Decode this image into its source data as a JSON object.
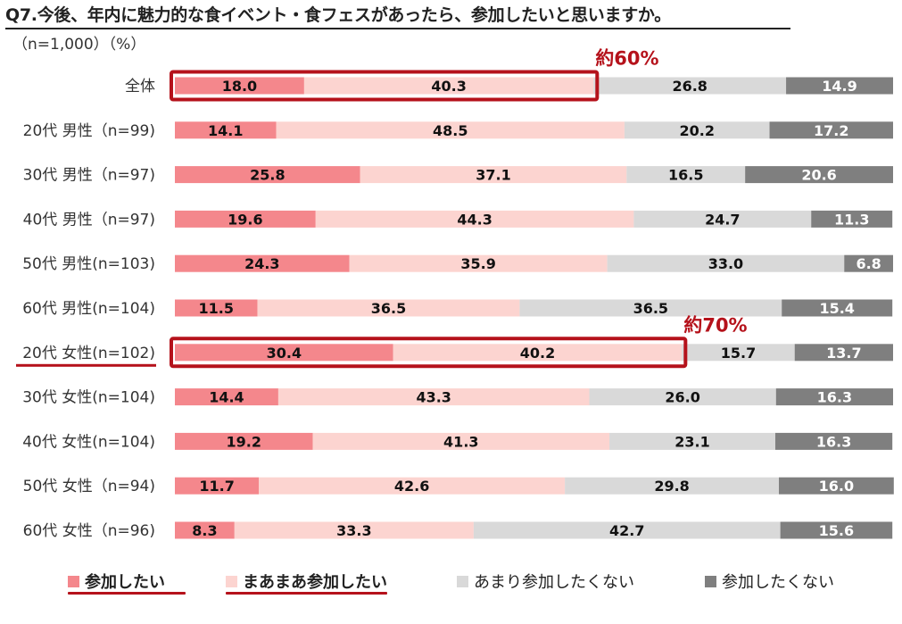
{
  "title": "Q7.今後、年内に魅力的な食イベント・食フェスがあったら、参加したいと思いますか。",
  "subtitle": "（n=1,000）（%）",
  "colors": {
    "want": "#f4878c",
    "somewhat": "#fcd4d0",
    "not_much": "#d9d9d9",
    "not": "#7f7f7f",
    "highlight": "#b5121b"
  },
  "legend": [
    {
      "label": "参加したい",
      "color": "#f4878c",
      "bold": true,
      "underline": true
    },
    {
      "label": "まあまあ参加したい",
      "color": "#fcd4d0",
      "bold": true,
      "underline": true
    },
    {
      "label": "あまり参加したくない",
      "color": "#d9d9d9",
      "bold": false,
      "underline": false
    },
    {
      "label": "参加したくない",
      "color": "#7f7f7f",
      "bold": false,
      "underline": false
    }
  ],
  "chart_data": {
    "type": "bar",
    "orientation": "horizontal",
    "stacked": "100%",
    "title": "Q7.今後、年内に魅力的な食イベント・食フェスがあったら、参加したいと思いますか。",
    "subtitle": "（n=1,000）（%）",
    "categories": [
      "全体",
      "20代 男性（n=99)",
      "30代 男性（n=97)",
      "40代 男性（n=97)",
      "50代 男性(n=103)",
      "60代 男性(n=104)",
      "20代 女性(n=102)",
      "30代 女性(n=104)",
      "40代 女性(n=104)",
      "50代 女性（n=94)",
      "60代 女性（n=96)"
    ],
    "series": [
      {
        "name": "参加したい",
        "color": "#f4878c",
        "values": [
          18.0,
          14.1,
          25.8,
          19.6,
          24.3,
          11.5,
          30.4,
          14.4,
          19.2,
          11.7,
          8.3
        ]
      },
      {
        "name": "まあまあ参加したい",
        "color": "#fcd4d0",
        "values": [
          40.3,
          48.5,
          37.1,
          44.3,
          35.9,
          36.5,
          40.2,
          43.3,
          41.3,
          42.6,
          33.3
        ]
      },
      {
        "name": "あまり参加したくない",
        "color": "#d9d9d9",
        "values": [
          26.8,
          20.2,
          16.5,
          24.7,
          33.0,
          36.5,
          15.7,
          26.0,
          23.1,
          29.8,
          42.7
        ]
      },
      {
        "name": "参加したくない",
        "color": "#7f7f7f",
        "values": [
          14.9,
          17.2,
          20.6,
          11.3,
          6.8,
          15.4,
          13.7,
          16.3,
          16.3,
          16.0,
          15.6
        ]
      }
    ],
    "annotations": [
      {
        "category_index": 0,
        "series_count": 2,
        "label": "約60%"
      },
      {
        "category_index": 6,
        "series_count": 2,
        "label": "約70%"
      }
    ],
    "underlined_category_index": 6,
    "xlim": [
      0,
      100
    ]
  }
}
